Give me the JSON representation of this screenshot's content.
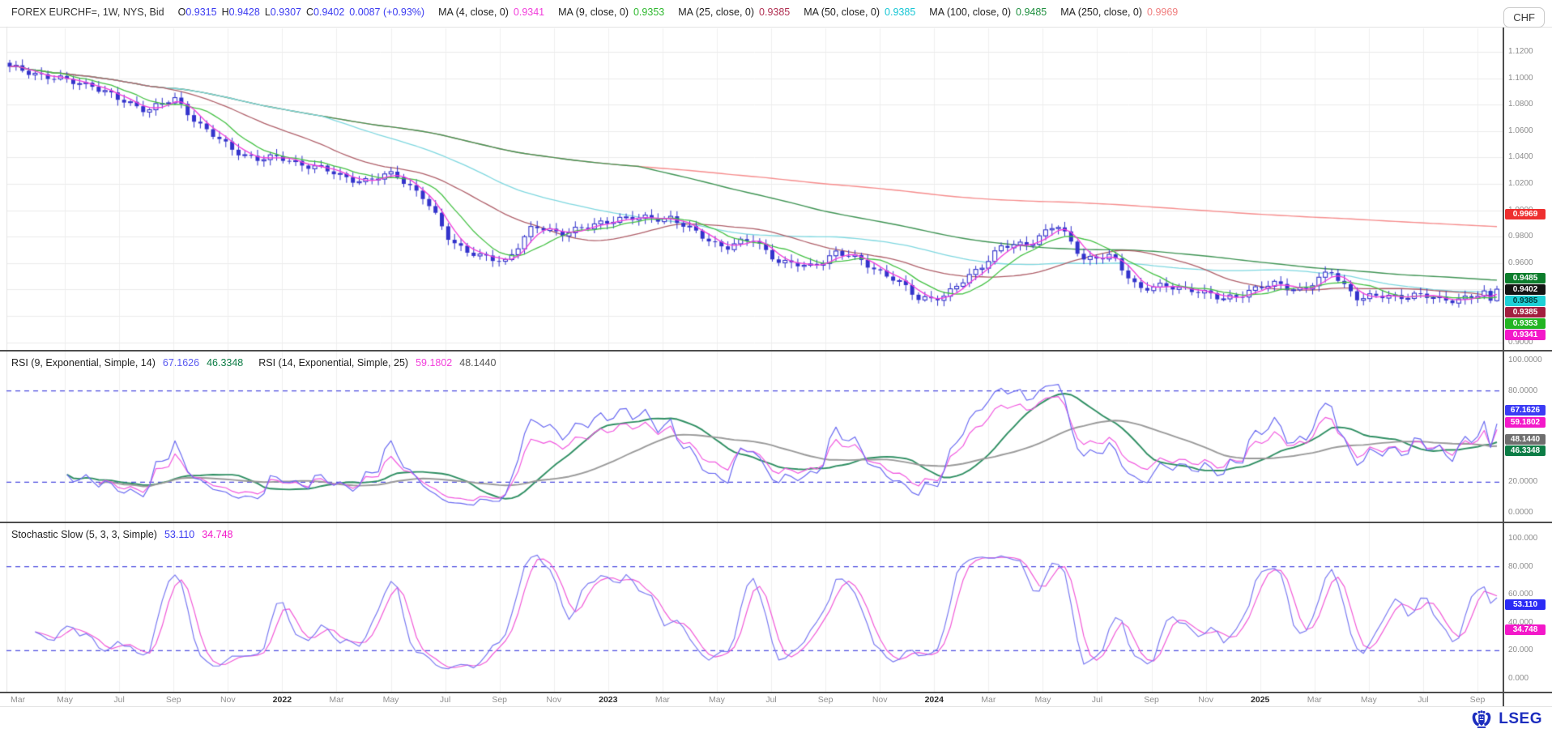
{
  "chrome": {
    "currency_button": "CHF"
  },
  "header": {
    "instrument": "FOREX EURCHF=, 1W, NYS, Bid",
    "fields": [
      {
        "label": "O",
        "value": "0.9315"
      },
      {
        "label": "H",
        "value": "0.9428"
      },
      {
        "label": "L",
        "value": "0.9307"
      },
      {
        "label": "C",
        "value": "0.9402"
      }
    ],
    "change": "0.0087 (+0.93%)",
    "value_color": "#3b3bf0",
    "mas": [
      {
        "label": "MA (4, close, 0)",
        "value": "0.9341",
        "color": "#f23ddb"
      },
      {
        "label": "MA (9, close, 0)",
        "value": "0.9353",
        "color": "#2eb82e"
      },
      {
        "label": "MA (25, close, 0)",
        "value": "0.9385",
        "color": "#b03052"
      },
      {
        "label": "MA (50, close, 0)",
        "value": "0.9385",
        "color": "#17c6d4"
      },
      {
        "label": "MA (100, close, 0)",
        "value": "0.9485",
        "color": "#1f8f3f"
      },
      {
        "label": "MA (250, close, 0)",
        "value": "0.9969",
        "color": "#f07f7f"
      }
    ]
  },
  "rsi_header": {
    "label1": "RSI (9, Exponential, Simple, 14)",
    "value1": "67.1626",
    "value1_color": "#5a5af0",
    "avg1": "46.3348",
    "avg1_color": "#0e7d46",
    "label2": "RSI (14, Exponential, Simple, 25)",
    "value2": "59.1802",
    "value2_color": "#f23ddb",
    "avg2": "48.1440",
    "avg2_color": "#555555"
  },
  "stoch_header": {
    "label": "Stochastic Slow (5, 3, 3, Simple)",
    "k": "53.110",
    "k_color": "#3b3bf0",
    "d": "34.748",
    "d_color": "#f318c9"
  },
  "badges": {
    "main": [
      {
        "text": "0.9969",
        "value": 0.9969,
        "bg": "#ee2f2f",
        "fg": "#ffffff"
      },
      {
        "text": "0.9485",
        "value": 0.9485,
        "bg": "#0c7d2c",
        "fg": "#ffffff"
      },
      {
        "text": "0.9402",
        "value": 0.9402,
        "bg": "#141414",
        "fg": "#ffffff"
      },
      {
        "text": "0.9385",
        "value": 0.9385,
        "bg": "#1ed0d6",
        "fg": "#003b3b"
      },
      {
        "text": "0.9385",
        "value": 0.9384,
        "bg": "#a31e3f",
        "fg": "#ffffff"
      },
      {
        "text": "0.9353",
        "value": 0.9353,
        "bg": "#22b422",
        "fg": "#ffffff"
      },
      {
        "text": "0.9341",
        "value": 0.9341,
        "bg": "#f318c9",
        "fg": "#ffffff"
      }
    ],
    "rsi": [
      {
        "text": "67.1626",
        "value": 67.1626,
        "bg": "#3b3bf5",
        "fg": "#ffffff"
      },
      {
        "text": "59.1802",
        "value": 59.1802,
        "bg": "#f318c9",
        "fg": "#ffffff"
      },
      {
        "text": "48.1440",
        "value": 48.144,
        "bg": "#6e6e6e",
        "fg": "#ffffff"
      },
      {
        "text": "46.3348",
        "value": 46.3348,
        "bg": "#0c7d46",
        "fg": "#ffffff"
      }
    ],
    "stoch": [
      {
        "text": "53.110",
        "value": 53.11,
        "bg": "#2b2bf5",
        "fg": "#ffffff"
      },
      {
        "text": "34.748",
        "value": 34.748,
        "bg": "#f318c9",
        "fg": "#ffffff"
      }
    ]
  },
  "axes": {
    "price_ticks": [
      "1.1200",
      "1.1000",
      "1.0800",
      "1.0600",
      "1.0400",
      "1.0200",
      "1.0000",
      "0.9800",
      "0.9600",
      "0.9400",
      "0.9200",
      "0.9000"
    ],
    "rsi_ticks": [
      "100.0000",
      "80.0000",
      "60.0000",
      "40.0000",
      "20.0000",
      "0.0000"
    ],
    "stoch_ticks": [
      "100.000",
      "80.000",
      "60.000",
      "40.000",
      "20.000",
      "0.000"
    ],
    "x_labels": [
      "Mar",
      "May",
      "Jul",
      "Sep",
      "Nov",
      "2022",
      "Mar",
      "May",
      "Jul",
      "Sep",
      "Nov",
      "2023",
      "Mar",
      "May",
      "Jul",
      "Sep",
      "Nov",
      "2024",
      "Mar",
      "May",
      "Jul",
      "Sep",
      "Nov",
      "2025",
      "Mar",
      "May",
      "Jul",
      "Sep"
    ],
    "year_label_indexes": [
      5,
      11,
      17,
      23
    ]
  },
  "footer": {
    "logo_text": "LSEG"
  },
  "chart_data": {
    "type": "candlestick",
    "title": "FOREX EURCHF=, 1W, NYS, Bid",
    "instrument": "EURCHF=",
    "interval": "1W",
    "x_range": [
      "Mar 2021",
      "Sep 2025"
    ],
    "price_axis_range": [
      0.895,
      1.13
    ],
    "grid": true,
    "weeks": 235,
    "last_candle": {
      "open": 0.9315,
      "high": 0.9428,
      "low": 0.9307,
      "close": 0.9402,
      "change": "0.0087 (+0.93%)"
    },
    "monthly_close_anchors": [
      [
        "2021-03",
        1.107
      ],
      [
        "2021-04",
        1.103
      ],
      [
        "2021-05",
        1.098
      ],
      [
        "2021-06",
        1.096
      ],
      [
        "2021-07",
        1.083
      ],
      [
        "2021-08",
        1.076
      ],
      [
        "2021-09",
        1.083
      ],
      [
        "2021-10",
        1.064
      ],
      [
        "2021-11",
        1.047
      ],
      [
        "2021-12",
        1.039
      ],
      [
        "2022-01",
        1.038
      ],
      [
        "2022-02",
        1.033
      ],
      [
        "2022-03",
        1.027
      ],
      [
        "2022-04",
        1.022
      ],
      [
        "2022-05",
        1.028
      ],
      [
        "2022-06",
        1.009
      ],
      [
        "2022-07",
        0.978
      ],
      [
        "2022-08",
        0.965
      ],
      [
        "2022-09",
        0.962
      ],
      [
        "2022-10",
        0.986
      ],
      [
        "2022-11",
        0.983
      ],
      [
        "2022-12",
        0.987
      ],
      [
        "2023-01",
        0.995
      ],
      [
        "2023-02",
        0.993
      ],
      [
        "2023-03",
        0.994
      ],
      [
        "2023-04",
        0.981
      ],
      [
        "2023-05",
        0.973
      ],
      [
        "2023-06",
        0.978
      ],
      [
        "2023-07",
        0.96
      ],
      [
        "2023-08",
        0.956
      ],
      [
        "2023-09",
        0.968
      ],
      [
        "2023-10",
        0.962
      ],
      [
        "2023-11",
        0.949
      ],
      [
        "2023-12",
        0.933
      ],
      [
        "2024-01",
        0.934
      ],
      [
        "2024-02",
        0.954
      ],
      [
        "2024-03",
        0.972
      ],
      [
        "2024-04",
        0.975
      ],
      [
        "2024-05",
        0.988
      ],
      [
        "2024-06",
        0.964
      ],
      [
        "2024-07",
        0.965
      ],
      [
        "2024-08",
        0.942
      ],
      [
        "2024-09",
        0.941
      ],
      [
        "2024-10",
        0.94
      ],
      [
        "2024-11",
        0.932
      ],
      [
        "2024-12",
        0.94
      ],
      [
        "2025-01",
        0.944
      ],
      [
        "2025-02",
        0.939
      ],
      [
        "2025-03",
        0.953
      ],
      [
        "2025-04",
        0.933
      ],
      [
        "2025-05",
        0.936
      ],
      [
        "2025-06",
        0.935
      ],
      [
        "2025-07",
        0.932
      ],
      [
        "2025-08",
        0.933
      ],
      [
        "2025-09",
        0.9402
      ]
    ],
    "moving_averages": [
      {
        "period": 4,
        "value": 0.9341,
        "color": "#f23ddb"
      },
      {
        "period": 9,
        "value": 0.9353,
        "color": "#45c245"
      },
      {
        "period": 25,
        "value": 0.9385,
        "color": "#b0606a"
      },
      {
        "period": 50,
        "value": 0.9385,
        "color": "#7fd8e0"
      },
      {
        "period": 100,
        "value": 0.9485,
        "color": "#3f9454"
      },
      {
        "period": 250,
        "value": 0.9969,
        "color": "#f68d8d"
      }
    ],
    "indicator_panels": [
      {
        "name": "RSI",
        "params": "(9, Exponential, Simple, 14)",
        "value": 67.1626,
        "signal": 46.3348,
        "second": {
          "name": "RSI",
          "params": "(14, Exponential, Simple, 25)",
          "value": 59.1802,
          "signal": 48.144
        },
        "range": [
          0,
          100
        ],
        "thresholds": [
          80,
          20
        ],
        "colors": {
          "rsi9": "#6b6bf2",
          "rsi14": "#f25ae0",
          "sma14": "#2f8f63",
          "sma25": "#9a9a9a"
        }
      },
      {
        "name": "Stochastic Slow",
        "params": "(5, 3, 3, Simple)",
        "k": 53.11,
        "d": 34.748,
        "range": [
          0,
          100
        ],
        "thresholds": [
          80,
          20
        ],
        "colors": {
          "k": "#7b7bf2",
          "d": "#f25ad8"
        }
      }
    ],
    "candle_color": "#3333cc",
    "threshold_line_color": "#4d4de0"
  }
}
